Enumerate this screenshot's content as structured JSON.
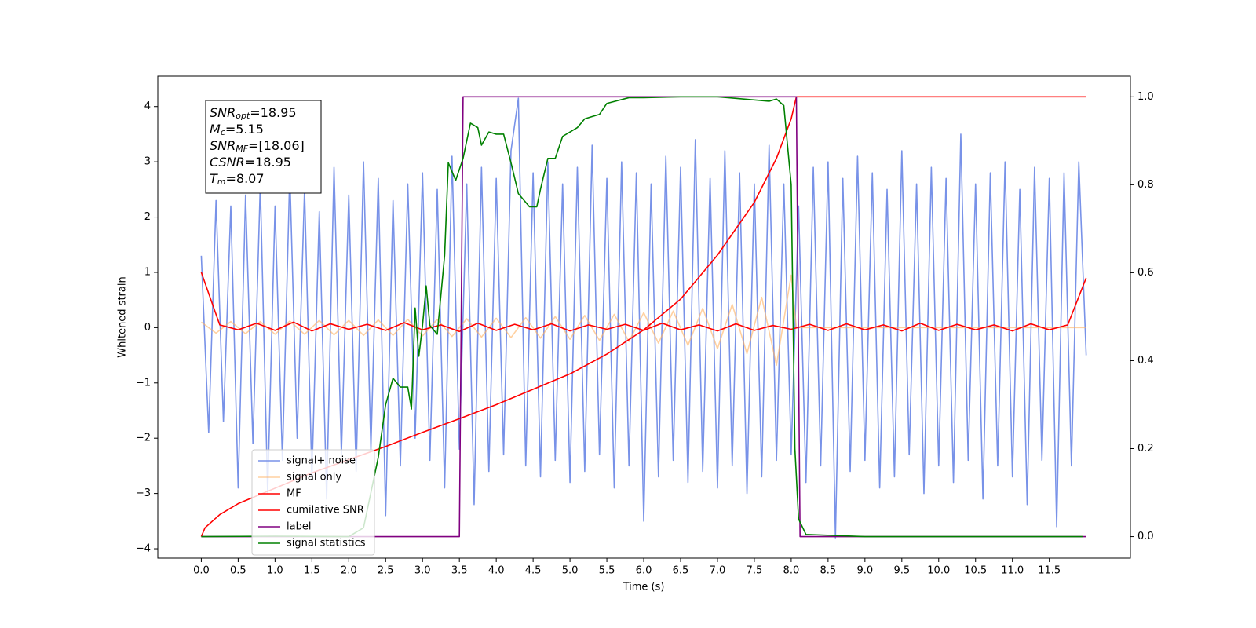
{
  "chart_data": {
    "type": "line",
    "xlabel": "Time (s)",
    "ylabel": "Whitened strain",
    "xlim": [
      -0.59,
      12.6
    ],
    "ylim": [
      -4.17,
      4.55
    ],
    "y2lim": [
      -0.049,
      1.047
    ],
    "xticks": [
      {
        "value": 0,
        "label": "0.0"
      },
      0.5,
      {
        "value": 1,
        "label": "1.0"
      },
      1.5,
      {
        "value": 2,
        "label": "2.0"
      },
      2.5,
      {
        "value": 3,
        "label": "3.0"
      },
      3.5,
      {
        "value": 4,
        "label": "4.0"
      },
      4.5,
      {
        "value": 5,
        "label": "5.0"
      },
      5.5,
      {
        "value": 6,
        "label": "6.0"
      },
      6.5,
      {
        "value": 7,
        "label": "7.0"
      },
      7.5,
      {
        "value": 8,
        "label": "8.0"
      },
      8.5,
      {
        "value": 9,
        "label": "9.0"
      },
      9.5,
      {
        "value": 10,
        "label": "10.0"
      },
      10.5,
      {
        "value": 11,
        "label": "11.0"
      },
      11.5
    ],
    "yticks": [
      {
        "value": -4,
        "label": "−4"
      },
      {
        "value": -3,
        "label": "−3"
      },
      {
        "value": -2,
        "label": "−2"
      },
      {
        "value": -1,
        "label": "−1"
      },
      0,
      1,
      2,
      3,
      4
    ],
    "y2ticks": [
      {
        "value": 0,
        "label": "0.0"
      },
      0.2,
      0.4,
      0.6,
      0.8,
      {
        "value": 1,
        "label": "1.0"
      }
    ],
    "legend": "lower left",
    "annotations": [
      {
        "symbol": "SNR",
        "sub": "opt",
        "text": "=18.95"
      },
      {
        "symbol": "M",
        "sub": "c",
        "text": "=5.15"
      },
      {
        "symbol": "SNR",
        "sub": "MF",
        "text": "=[18.06]"
      },
      {
        "symbol": "CSNR",
        "text": "=18.95"
      },
      {
        "symbol": "T",
        "sub": "m",
        "text": "=8.07"
      }
    ],
    "series": [
      {
        "name": "signal+ noise",
        "color": "#7892e8",
        "x": [
          0,
          0.1,
          0.2,
          0.3,
          0.4,
          0.5,
          0.6,
          0.7,
          0.8,
          0.9,
          1,
          1.1,
          1.2,
          1.3,
          1.4,
          1.5,
          1.6,
          1.7,
          1.8,
          1.9,
          2,
          2.1,
          2.2,
          2.3,
          2.4,
          2.5,
          2.6,
          2.7,
          2.8,
          2.9,
          3,
          3.1,
          3.2,
          3.3,
          3.4,
          3.5,
          3.6,
          3.7,
          3.8,
          3.9,
          4,
          4.1,
          4.2,
          4.3,
          4.4,
          4.5,
          4.6,
          4.7,
          4.8,
          4.9,
          5,
          5.1,
          5.2,
          5.3,
          5.4,
          5.5,
          5.6,
          5.7,
          5.8,
          5.9,
          6,
          6.1,
          6.2,
          6.3,
          6.4,
          6.5,
          6.6,
          6.7,
          6.8,
          6.9,
          7,
          7.1,
          7.2,
          7.3,
          7.4,
          7.5,
          7.6,
          7.7,
          7.8,
          7.9,
          8,
          8.1,
          8.2,
          8.3,
          8.4,
          8.5,
          8.6,
          8.7,
          8.8,
          8.9,
          9,
          9.1,
          9.2,
          9.3,
          9.4,
          9.5,
          9.6,
          9.7,
          9.8,
          9.9,
          10,
          10.1,
          10.2,
          10.3,
          10.4,
          10.5,
          10.6,
          10.7,
          10.8,
          10.9,
          11,
          11.1,
          11.2,
          11.3,
          11.4,
          11.5,
          11.6,
          11.7,
          11.8,
          11.9,
          12
        ],
        "values": [
          1.3,
          -1.9,
          2.3,
          -1.7,
          2.2,
          -2.9,
          2.4,
          -2.1,
          2.6,
          -3.0,
          2.2,
          -2.4,
          2.8,
          -2.0,
          2.5,
          -2.7,
          2.1,
          -3.1,
          2.9,
          -2.3,
          2.4,
          -2.6,
          3.0,
          -2.2,
          2.7,
          -3.4,
          2.3,
          -2.5,
          2.6,
          -2.0,
          2.8,
          -2.4,
          2.5,
          -2.9,
          3.1,
          -2.2,
          2.6,
          -3.2,
          2.9,
          -2.6,
          2.7,
          -2.3,
          3.2,
          4.15,
          -2.5,
          2.8,
          -2.7,
          3.0,
          -2.4,
          2.6,
          -2.8,
          2.9,
          -2.6,
          3.3,
          -2.3,
          2.7,
          -2.9,
          3.0,
          -2.5,
          2.8,
          -3.5,
          2.6,
          -2.7,
          3.1,
          -2.4,
          2.9,
          -2.8,
          3.4,
          -2.6,
          2.7,
          -2.9,
          3.2,
          -2.5,
          2.8,
          -3.0,
          2.6,
          -2.7,
          3.3,
          -2.4,
          2.6,
          -2.3,
          2.2,
          -2.8,
          2.9,
          -2.5,
          3.0,
          -3.8,
          2.7,
          -2.6,
          3.1,
          -2.4,
          2.8,
          -2.9,
          2.5,
          -2.7,
          3.2,
          -2.3,
          2.6,
          -3.0,
          2.9,
          -2.5,
          2.7,
          -2.8,
          3.5,
          -2.4,
          2.6,
          -3.1,
          2.8,
          -2.5,
          3.0,
          -2.7,
          2.5,
          -3.2,
          2.9,
          -2.4,
          2.7,
          -3.6,
          2.8,
          -2.5,
          3.0,
          -0.5
        ]
      },
      {
        "name": "signal only",
        "color": "#ffb060",
        "x": [
          0,
          0.2,
          0.4,
          0.6,
          0.8,
          1,
          1.2,
          1.4,
          1.6,
          1.8,
          2,
          2.2,
          2.4,
          2.6,
          2.8,
          3,
          3.2,
          3.4,
          3.6,
          3.8,
          4,
          4.2,
          4.4,
          4.6,
          4.8,
          5,
          5.2,
          5.4,
          5.6,
          5.8,
          6,
          6.2,
          6.4,
          6.6,
          6.8,
          7,
          7.2,
          7.4,
          7.6,
          7.8,
          8,
          8.07,
          12
        ],
        "values": [
          0.1,
          -0.1,
          0.11,
          -0.11,
          0.11,
          -0.12,
          0.12,
          -0.12,
          0.13,
          -0.13,
          0.13,
          -0.14,
          0.14,
          -0.14,
          0.15,
          -0.15,
          0.15,
          -0.16,
          0.16,
          -0.17,
          0.17,
          -0.18,
          0.18,
          -0.19,
          0.2,
          -0.21,
          0.22,
          -0.23,
          0.24,
          -0.25,
          0.27,
          -0.28,
          0.3,
          -0.32,
          0.35,
          -0.38,
          0.42,
          -0.47,
          0.55,
          -0.68,
          0.95,
          0,
          0
        ]
      },
      {
        "name": "MF",
        "color": "#ff0000",
        "x": [
          0,
          0.25,
          0.5,
          0.75,
          1,
          1.25,
          1.5,
          1.75,
          2,
          2.25,
          2.5,
          2.75,
          3,
          3.25,
          3.5,
          3.75,
          4,
          4.25,
          4.5,
          4.75,
          5,
          5.25,
          5.5,
          5.75,
          6,
          6.25,
          6.5,
          6.75,
          7,
          7.25,
          7.5,
          7.75,
          8,
          8.25,
          8.5,
          8.75,
          9,
          9.25,
          9.5,
          9.75,
          10,
          10.25,
          10.5,
          10.75,
          11,
          11.25,
          11.5,
          11.75,
          12
        ],
        "values": [
          1.0,
          0.05,
          -0.04,
          0.08,
          -0.05,
          0.1,
          -0.06,
          0.07,
          -0.03,
          0.06,
          -0.05,
          0.09,
          -0.04,
          0.05,
          -0.07,
          0.08,
          -0.05,
          0.06,
          -0.04,
          0.07,
          -0.06,
          0.05,
          -0.03,
          0.06,
          -0.05,
          0.08,
          -0.04,
          0.05,
          -0.06,
          0.07,
          -0.05,
          0.04,
          -0.03,
          0.06,
          -0.05,
          0.07,
          -0.04,
          0.05,
          -0.06,
          0.08,
          -0.05,
          0.06,
          -0.04,
          0.05,
          -0.06,
          0.07,
          -0.04,
          0.05,
          0.9
        ]
      },
      {
        "name": "cumilative SNR",
        "color": "#ff0000",
        "axis": "y2",
        "x": [
          0,
          0.05,
          0.25,
          0.5,
          1,
          1.5,
          2,
          2.5,
          3,
          3.5,
          4,
          4.5,
          5,
          5.5,
          6,
          6.5,
          7,
          7.5,
          7.8,
          8,
          8.07,
          12
        ],
        "values": [
          0,
          0.02,
          0.05,
          0.075,
          0.11,
          0.145,
          0.175,
          0.205,
          0.237,
          0.268,
          0.3,
          0.335,
          0.37,
          0.415,
          0.47,
          0.54,
          0.64,
          0.76,
          0.86,
          0.95,
          1,
          1
        ]
      },
      {
        "name": "label",
        "color": "#800080",
        "axis": "y2",
        "x": [
          0,
          3.5,
          3.55,
          8.07,
          8.12,
          12
        ],
        "values": [
          0,
          0,
          1,
          1,
          0,
          0
        ]
      },
      {
        "name": "signal statistics",
        "color": "#008000",
        "axis": "y2",
        "x": [
          0,
          1,
          2,
          2.2,
          2.4,
          2.5,
          2.6,
          2.7,
          2.8,
          2.85,
          2.9,
          2.95,
          3,
          3.05,
          3.1,
          3.2,
          3.3,
          3.35,
          3.45,
          3.55,
          3.65,
          3.75,
          3.8,
          3.9,
          4,
          4.1,
          4.2,
          4.3,
          4.45,
          4.55,
          4.6,
          4.7,
          4.8,
          4.9,
          5,
          5.1,
          5.2,
          5.3,
          5.4,
          5.5,
          5.8,
          6,
          6.5,
          7,
          7.7,
          7.8,
          7.9,
          8,
          8.05,
          8.1,
          8.2,
          9,
          11.95
        ],
        "values": [
          0,
          0.001,
          0,
          0.02,
          0.18,
          0.3,
          0.36,
          0.34,
          0.34,
          0.29,
          0.52,
          0.41,
          0.48,
          0.57,
          0.48,
          0.46,
          0.64,
          0.85,
          0.81,
          0.86,
          0.94,
          0.93,
          0.89,
          0.92,
          0.915,
          0.915,
          0.85,
          0.78,
          0.75,
          0.75,
          0.79,
          0.86,
          0.86,
          0.91,
          0.92,
          0.93,
          0.95,
          0.955,
          0.96,
          0.985,
          0.998,
          0.998,
          1,
          1,
          0.99,
          0.995,
          0.98,
          0.8,
          0.2,
          0.04,
          0.005,
          0,
          0
        ]
      }
    ]
  }
}
